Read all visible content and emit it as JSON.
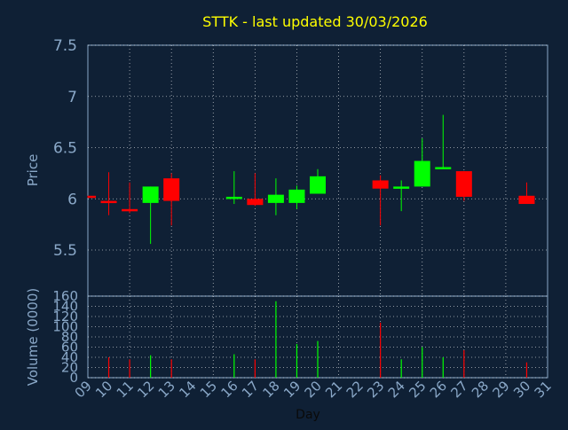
{
  "chart_data": {
    "type": "candlestick",
    "title": "STTK - last updated 30/03/2026",
    "xlabel": "Day",
    "ylabel": "Price",
    "volume_label": "Volume (0000)",
    "x_ticks": [
      "09",
      "10",
      "11",
      "12",
      "13",
      "14",
      "15",
      "16",
      "17",
      "18",
      "19",
      "20",
      "21",
      "22",
      "23",
      "24",
      "25",
      "26",
      "27",
      "28",
      "29",
      "30",
      "31"
    ],
    "price_ticks": [
      "7.5",
      "7",
      "6.5",
      "6",
      "5.5"
    ],
    "price_ylim": [
      5.05,
      7.5
    ],
    "volume_ticks": [
      "160",
      "140",
      "120",
      "100",
      "80",
      "60",
      "40",
      "20",
      "0"
    ],
    "volume_ylim": [
      0,
      160
    ],
    "grid": true,
    "colors": {
      "up": "#00ff00",
      "down": "#ff0000",
      "background": "#0f2035",
      "title": "#ffff00",
      "axis_text": "#8aa8c8",
      "grid": "#ffffff"
    },
    "candles": [
      {
        "day": 9,
        "open": 6.03,
        "close": 6.01,
        "high": 6.03,
        "low": 6.01
      },
      {
        "day": 10,
        "open": 5.98,
        "close": 5.96,
        "high": 6.26,
        "low": 5.84
      },
      {
        "day": 11,
        "open": 5.9,
        "close": 5.88,
        "high": 6.16,
        "low": 5.86
      },
      {
        "day": 12,
        "open": 5.96,
        "close": 6.12,
        "high": 6.12,
        "low": 5.56
      },
      {
        "day": 13,
        "open": 6.2,
        "close": 5.98,
        "high": 6.25,
        "low": 5.74
      },
      {
        "day": 16,
        "open": 6.0,
        "close": 6.02,
        "high": 6.27,
        "low": 5.95
      },
      {
        "day": 17,
        "open": 6.0,
        "close": 5.94,
        "high": 6.25,
        "low": 5.93
      },
      {
        "day": 18,
        "open": 5.96,
        "close": 6.04,
        "high": 6.2,
        "low": 5.84
      },
      {
        "day": 19,
        "open": 5.96,
        "close": 6.09,
        "high": 6.13,
        "low": 5.9
      },
      {
        "day": 20,
        "open": 6.05,
        "close": 6.22,
        "high": 6.29,
        "low": 6.05
      },
      {
        "day": 23,
        "open": 6.18,
        "close": 6.1,
        "high": 6.23,
        "low": 5.74
      },
      {
        "day": 24,
        "open": 6.11,
        "close": 6.12,
        "high": 6.18,
        "low": 5.88
      },
      {
        "day": 25,
        "open": 6.12,
        "close": 6.37,
        "high": 6.59,
        "low": 6.12
      },
      {
        "day": 26,
        "open": 6.3,
        "close": 6.31,
        "high": 6.82,
        "low": 6.3
      },
      {
        "day": 27,
        "open": 6.27,
        "close": 6.02,
        "high": 6.27,
        "low": 5.98
      },
      {
        "day": 30,
        "open": 6.03,
        "close": 5.95,
        "high": 6.16,
        "low": 5.95
      }
    ],
    "volume": [
      {
        "day": 10,
        "value": 40,
        "dir": "down"
      },
      {
        "day": 11,
        "value": 36,
        "dir": "down"
      },
      {
        "day": 12,
        "value": 44,
        "dir": "up"
      },
      {
        "day": 13,
        "value": 36,
        "dir": "down"
      },
      {
        "day": 16,
        "value": 46,
        "dir": "up"
      },
      {
        "day": 17,
        "value": 36,
        "dir": "down"
      },
      {
        "day": 18,
        "value": 150,
        "dir": "up"
      },
      {
        "day": 19,
        "value": 66,
        "dir": "up"
      },
      {
        "day": 20,
        "value": 72,
        "dir": "up"
      },
      {
        "day": 23,
        "value": 108,
        "dir": "down"
      },
      {
        "day": 24,
        "value": 36,
        "dir": "up"
      },
      {
        "day": 25,
        "value": 60,
        "dir": "up"
      },
      {
        "day": 26,
        "value": 40,
        "dir": "up"
      },
      {
        "day": 27,
        "value": 54,
        "dir": "down"
      },
      {
        "day": 30,
        "value": 30,
        "dir": "down"
      }
    ]
  }
}
